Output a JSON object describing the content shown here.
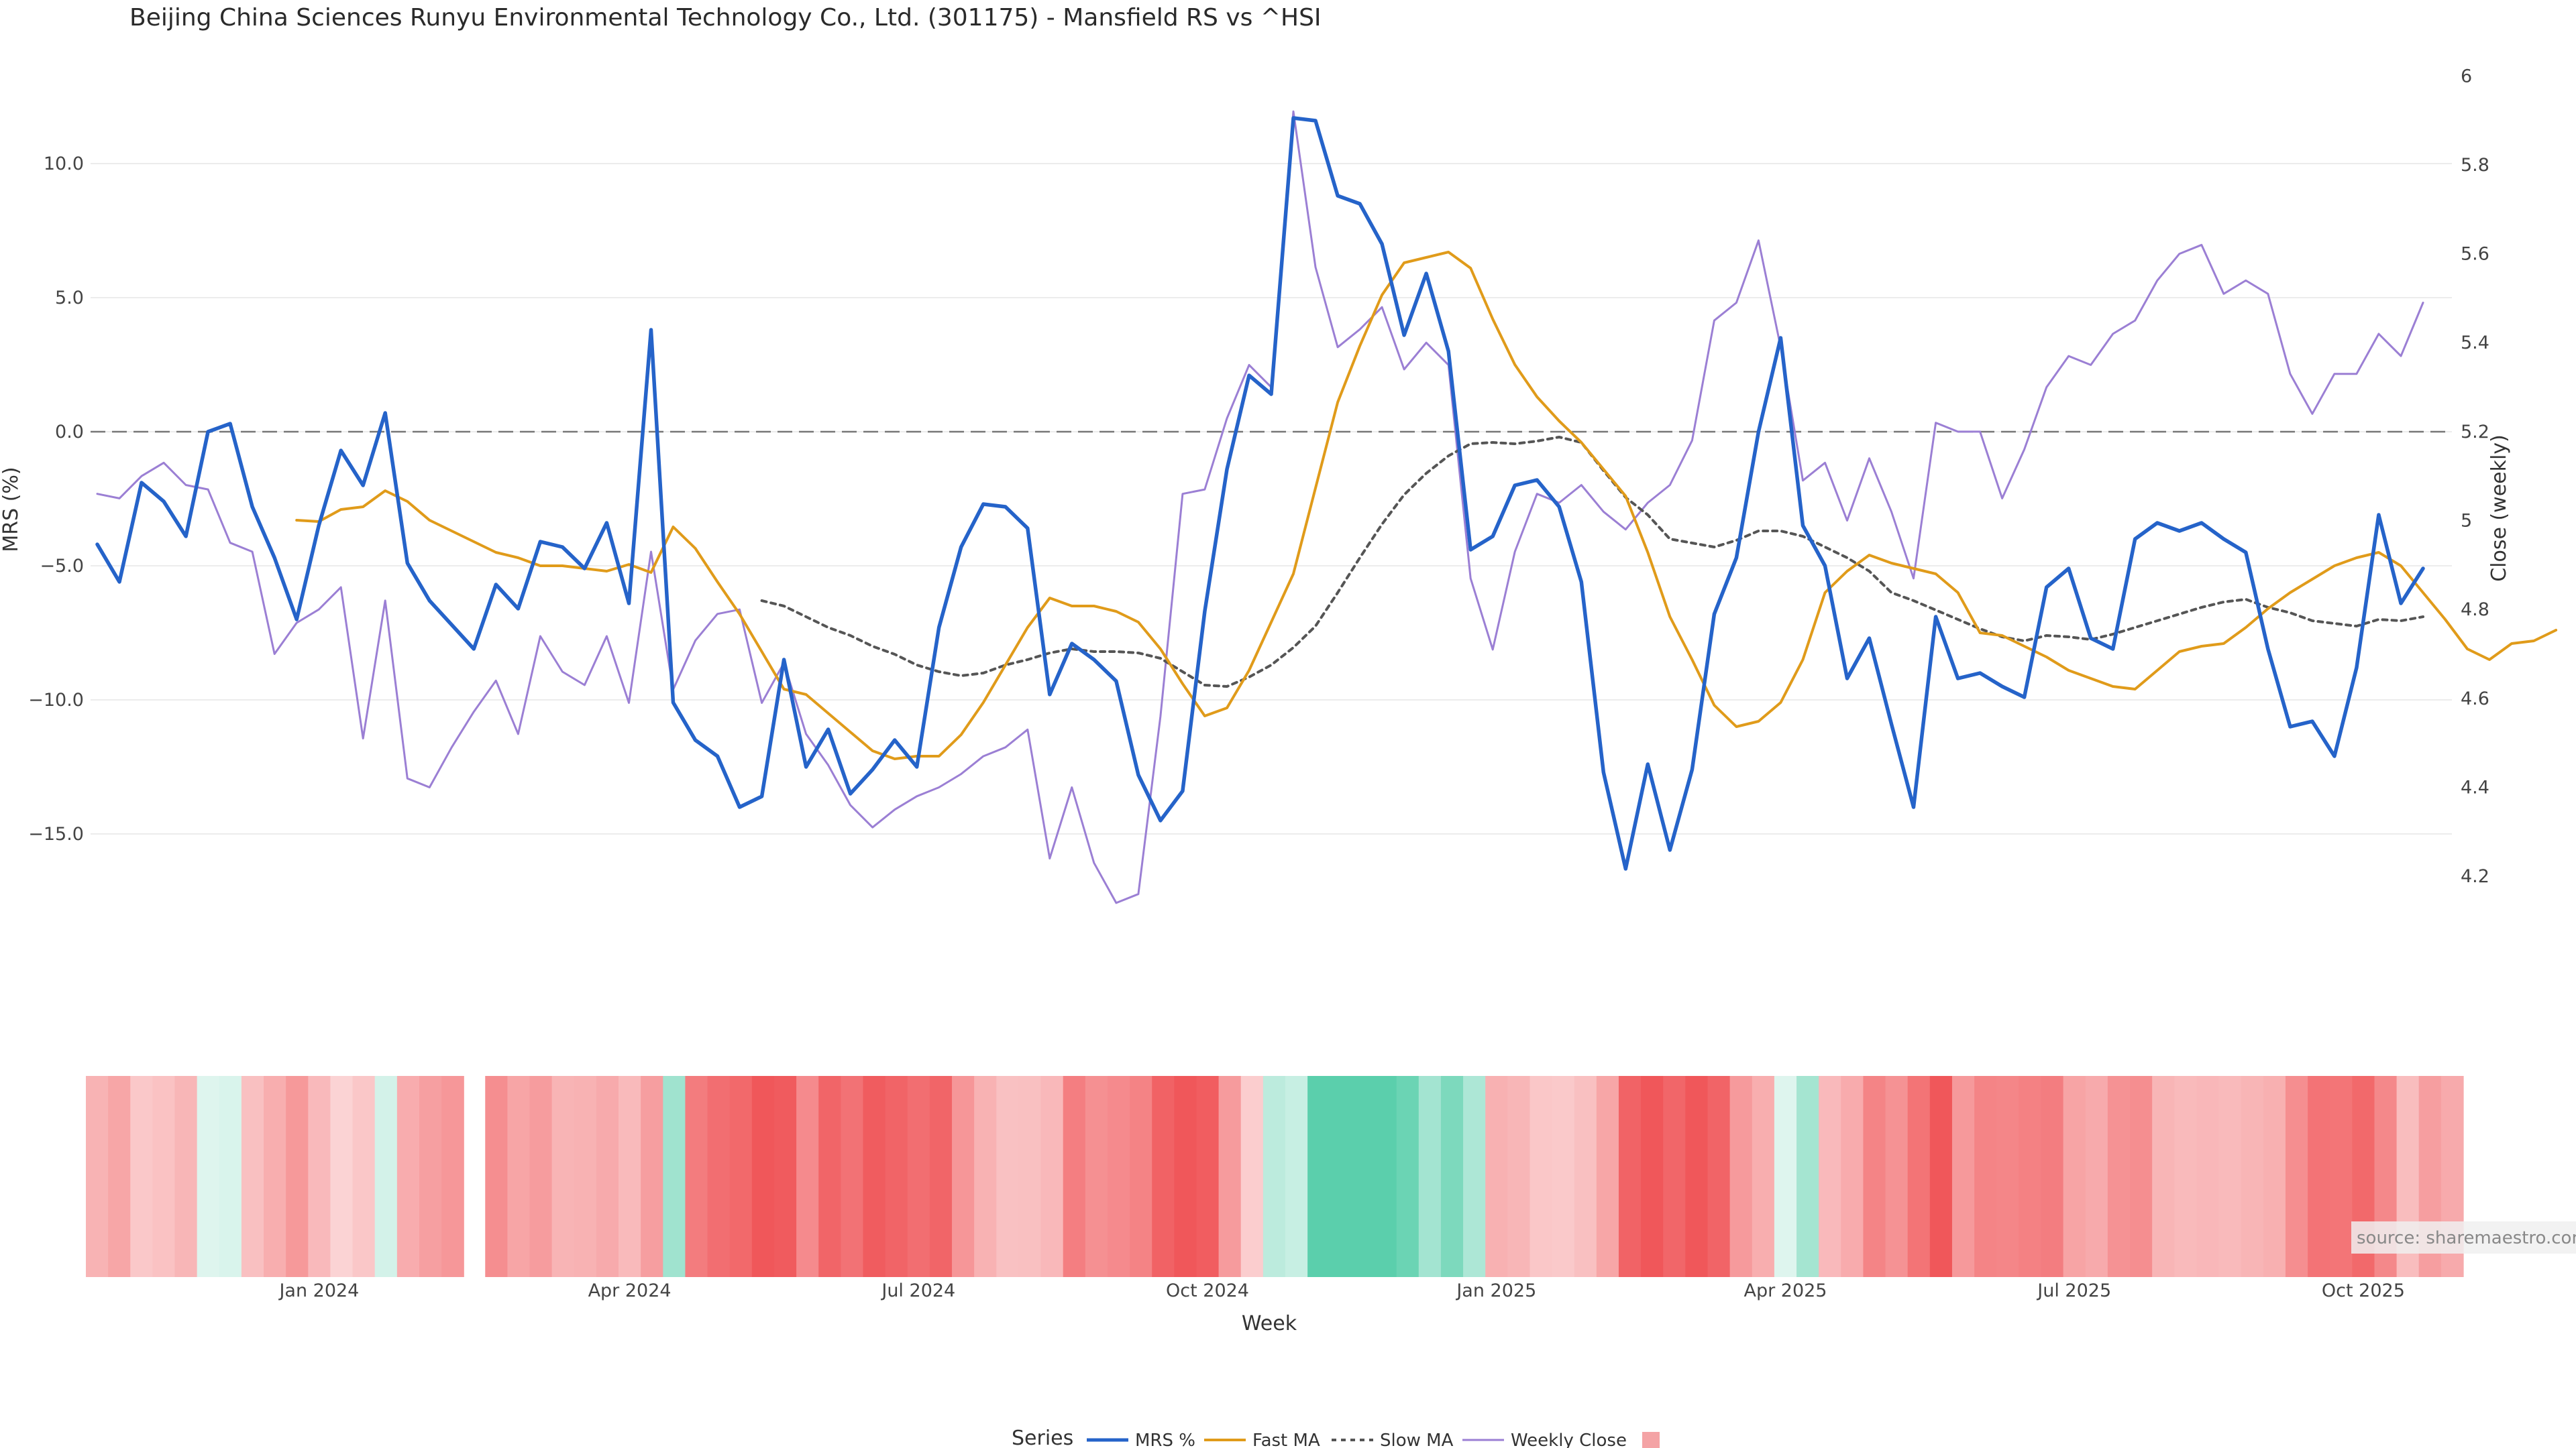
{
  "chart_data": {
    "type": "line",
    "title": "Beijing China Sciences Runyu Environmental Technology Co., Ltd. (301175) - Mansfield RS vs ^HSI",
    "xlabel": "Week",
    "ylabel_left": "MRS (%)",
    "ylabel_right": "Close (weekly)",
    "ylim_left": [
      -18.9,
      13.6
    ],
    "ylim_right": [
      4.06,
      6.02
    ],
    "yticks_left": [
      10.0,
      5.0,
      0.0,
      -5.0,
      -10.0,
      -15.0
    ],
    "yticks_left_labels": [
      "10.0",
      "5.0",
      "0.0",
      "−5.0",
      "−10.0",
      "−15.0"
    ],
    "yticks_right": [
      6,
      5.8,
      5.6,
      5.4,
      5.2,
      5,
      4.8,
      4.6,
      4.4,
      4.2
    ],
    "yticks_right_labels": [
      "6",
      "5.8",
      "5.6",
      "5.4",
      "5.2",
      "5",
      "4.8",
      "4.6",
      "4.4",
      "4.2"
    ],
    "xtick_labels": [
      "Jan 2024",
      "Apr 2024",
      "Jul 2024",
      "Oct 2024",
      "Jan 2025",
      "Apr 2025",
      "Jul 2025",
      "Oct 2025"
    ],
    "xtick_index": [
      10,
      23,
      36,
      49,
      62,
      75,
      88,
      101
    ],
    "weeks": 107,
    "reference_line": 0,
    "series": [
      {
        "name": "MRS %",
        "axis": "left",
        "color": "#2563c9",
        "values": [
          -4.2,
          -5.6,
          -1.9,
          -2.6,
          -3.9,
          0.0,
          0.3,
          -2.8,
          -4.7,
          -7.0,
          -3.5,
          -0.7,
          -2.0,
          0.7,
          -4.9,
          -6.3,
          -7.2,
          -8.1,
          -5.7,
          -6.6,
          -4.1,
          -4.3,
          -5.1,
          -3.4,
          -6.4,
          3.8,
          -10.1,
          -11.5,
          -12.1,
          -14.0,
          -13.6,
          -8.5,
          -12.5,
          -11.1,
          -13.5,
          -12.6,
          -11.5,
          -12.5,
          -7.3,
          -4.3,
          -2.7,
          -2.8,
          -3.6,
          -9.8,
          -7.9,
          -8.5,
          -9.3,
          -12.8,
          -14.5,
          -13.4,
          -6.7,
          -1.4,
          2.1,
          1.4,
          11.7,
          11.6,
          8.8,
          8.5,
          7.0,
          3.6,
          5.9,
          3.0,
          -4.4,
          -3.9,
          -2.0,
          -1.8,
          -2.8,
          -5.6,
          -12.7,
          -16.3,
          -12.4,
          -15.6,
          -12.6,
          -6.8,
          -4.7,
          0.0,
          3.5,
          -3.5,
          -5.0,
          -9.2,
          -7.7,
          -10.9,
          -14.0,
          -6.9,
          -9.2,
          -9.0,
          -9.5,
          -9.9,
          -5.8,
          -5.1,
          -7.7,
          -8.1,
          -4.0,
          -3.4,
          -3.7,
          -3.4,
          -4.0,
          -4.5,
          -8.1,
          -11.0,
          -10.8,
          -12.1,
          -8.8,
          -3.1,
          -6.4,
          -5.1
        ]
      },
      {
        "name": "Fast MA",
        "axis": "left",
        "color": "#e09b1a",
        "start": 9,
        "values": [
          -3.3,
          -3.35,
          -2.9,
          -2.8,
          -2.2,
          -2.6,
          -3.3,
          -3.7,
          -4.1,
          -4.5,
          -4.7,
          -5.0,
          -5.0,
          -5.1,
          -5.2,
          -4.95,
          -5.25,
          -3.55,
          -4.35,
          -5.6,
          -6.8,
          -8.2,
          -9.6,
          -9.8,
          -10.5,
          -11.2,
          -11.9,
          -12.2,
          -12.1,
          -12.1,
          -11.3,
          -10.1,
          -8.7,
          -7.3,
          -6.2,
          -6.5,
          -6.5,
          -6.7,
          -7.1,
          -8.1,
          -9.4,
          -10.6,
          -10.3,
          -8.9,
          -7.1,
          -5.3,
          -2.1,
          1.1,
          3.2,
          5.1,
          6.3,
          6.5,
          6.7,
          6.1,
          4.2,
          2.5,
          1.3,
          0.4,
          -0.4,
          -1.4,
          -2.4,
          -4.5,
          -6.9,
          -8.5,
          -10.2,
          -11.0,
          -10.8,
          -10.1,
          -8.5,
          -6.0,
          -5.2,
          -4.6,
          -4.9,
          -5.1,
          -5.3,
          -6.0,
          -7.5,
          -7.6,
          -8.0,
          -8.4,
          -8.9,
          -9.2,
          -9.5,
          -9.6,
          -8.9,
          -8.2,
          -8.0,
          -7.9,
          -7.3,
          -6.6,
          -6.0,
          -5.5,
          -5.0,
          -4.7,
          -4.5,
          -5.0,
          -6.0,
          -7.0,
          -8.1,
          -8.5,
          -7.9,
          -7.8,
          -7.4
        ]
      },
      {
        "name": "Slow MA",
        "axis": "left",
        "color": "#555555",
        "dash": true,
        "start": 30,
        "values": [
          -6.3,
          -6.5,
          -6.9,
          -7.3,
          -7.6,
          -8.0,
          -8.3,
          -8.7,
          -8.95,
          -9.1,
          -9.0,
          -8.7,
          -8.5,
          -8.25,
          -8.1,
          -8.2,
          -8.2,
          -8.25,
          -8.45,
          -8.95,
          -9.45,
          -9.5,
          -9.15,
          -8.7,
          -8.05,
          -7.25,
          -6.0,
          -4.7,
          -3.45,
          -2.35,
          -1.55,
          -0.9,
          -0.45,
          -0.4,
          -0.45,
          -0.35,
          -0.2,
          -0.4,
          -1.45,
          -2.45,
          -3.1,
          -4.0,
          -4.15,
          -4.3,
          -4.05,
          -3.7,
          -3.7,
          -3.9,
          -4.3,
          -4.7,
          -5.2,
          -6.0,
          -6.3,
          -6.65,
          -7.0,
          -7.35,
          -7.65,
          -7.8,
          -7.6,
          -7.65,
          -7.75,
          -7.55,
          -7.3,
          -7.05,
          -6.8,
          -6.55,
          -6.35,
          -6.25,
          -6.55,
          -6.75,
          -7.05,
          -7.15,
          -7.25,
          -7.0,
          -7.05,
          -6.9
        ]
      },
      {
        "name": "Weekly Close",
        "axis": "right",
        "color": "#9b7fd4",
        "values": [
          5.06,
          5.05,
          5.1,
          5.13,
          5.08,
          5.07,
          4.95,
          4.93,
          4.7,
          4.77,
          4.8,
          4.85,
          4.51,
          4.82,
          4.42,
          4.4,
          4.49,
          4.57,
          4.64,
          4.52,
          4.74,
          4.66,
          4.63,
          4.74,
          4.59,
          4.93,
          4.62,
          4.73,
          4.79,
          4.8,
          4.59,
          4.68,
          4.52,
          4.45,
          4.36,
          4.31,
          4.35,
          4.38,
          4.4,
          4.43,
          4.47,
          4.49,
          4.53,
          4.24,
          4.4,
          4.23,
          4.14,
          4.16,
          4.56,
          5.06,
          5.07,
          5.23,
          5.35,
          5.3,
          5.92,
          5.57,
          5.39,
          5.43,
          5.48,
          5.34,
          5.4,
          5.35,
          4.87,
          4.71,
          4.93,
          5.06,
          5.04,
          5.08,
          5.02,
          4.98,
          5.04,
          5.08,
          5.18,
          5.45,
          5.49,
          5.63,
          5.39,
          5.09,
          5.13,
          5.0,
          5.14,
          5.02,
          4.87,
          5.22,
          5.2,
          5.2,
          5.05,
          5.16,
          5.3,
          5.37,
          5.35,
          5.42,
          5.45,
          5.54,
          5.6,
          5.62,
          5.51,
          5.54,
          5.51,
          5.33,
          5.24,
          5.33,
          5.33,
          5.42,
          5.37,
          5.49
        ]
      },
      {
        "name": "",
        "type": "heatmap-strip",
        "color_negative": "#f0575a",
        "color_positive": "#5bcfac",
        "gap_after_index": 16,
        "values": [
          -4.2,
          -5.6,
          -1.9,
          -2.6,
          -3.9,
          0.0,
          0.3,
          -2.8,
          -4.7,
          -7.0,
          -3.5,
          -0.7,
          -2.0,
          0.7,
          -4.9,
          -6.3,
          -7.2,
          -8.1,
          -5.7,
          -6.6,
          -4.1,
          -4.3,
          -5.1,
          -3.4,
          -6.4,
          3.8,
          -10.1,
          -11.5,
          -12.1,
          -14.0,
          -13.6,
          -8.5,
          -12.5,
          -11.1,
          -13.5,
          -12.6,
          -11.5,
          -12.5,
          -7.3,
          -4.3,
          -2.7,
          -2.8,
          -3.6,
          -9.8,
          -7.9,
          -8.5,
          -9.3,
          -12.8,
          -14.5,
          -13.4,
          -6.7,
          -1.4,
          2.1,
          1.4,
          11.7,
          11.6,
          8.8,
          8.5,
          7.0,
          3.6,
          5.9,
          3.0,
          -4.4,
          -3.9,
          -2.0,
          -1.8,
          -2.8,
          -5.6,
          -12.7,
          -16.3,
          -12.4,
          -15.6,
          -12.6,
          -6.8,
          -4.7,
          0.0,
          3.5,
          -3.5,
          -5.0,
          -9.2,
          -7.7,
          -10.9,
          -14.0,
          -6.9,
          -9.2,
          -9.0,
          -9.5,
          -9.9,
          -5.8,
          -5.1,
          -7.7,
          -8.1,
          -4.0,
          -3.4,
          -3.7,
          -3.4,
          -4.0,
          -4.5,
          -8.1,
          -11.0,
          -10.8,
          -12.1,
          -8.8,
          -3.1,
          -6.4,
          -5.1
        ]
      }
    ],
    "legend_title": "Series",
    "legend_position": "bottom-center",
    "source_note": "source: sharemaestro.com"
  }
}
